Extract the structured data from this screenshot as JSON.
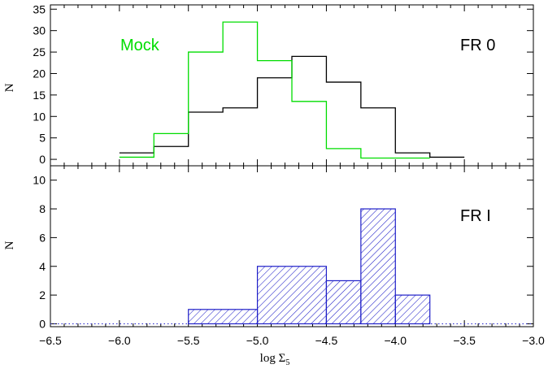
{
  "chart_data": [
    {
      "type": "histogram",
      "panel": "top",
      "xlabel": "",
      "ylabel": "N",
      "xlim": [
        -6.5,
        -3.0
      ],
      "ylim": [
        -1.5,
        36
      ],
      "yticks": [
        0,
        5,
        10,
        15,
        20,
        25,
        30,
        35
      ],
      "annotations": [
        "Mock",
        "FR 0"
      ],
      "series": [
        {
          "name": "FR 0",
          "color": "#000000",
          "style": "step",
          "bins": [
            [
              -6.0,
              -5.75
            ],
            [
              -5.75,
              -5.5
            ],
            [
              -5.5,
              -5.25
            ],
            [
              -5.25,
              -5.0
            ],
            [
              -5.0,
              -4.75
            ],
            [
              -4.75,
              -4.5
            ],
            [
              -4.5,
              -4.25
            ],
            [
              -4.25,
              -4.0
            ],
            [
              -4.0,
              -3.75
            ],
            [
              -3.75,
              -3.5
            ]
          ],
          "values": [
            1.5,
            3,
            11,
            12,
            19,
            24,
            18,
            12,
            1.5,
            0.5
          ]
        },
        {
          "name": "Mock",
          "color": "#00dd00",
          "style": "step",
          "bins": [
            [
              -6.0,
              -5.75
            ],
            [
              -5.75,
              -5.5
            ],
            [
              -5.5,
              -5.25
            ],
            [
              -5.25,
              -5.0
            ],
            [
              -5.0,
              -4.75
            ],
            [
              -4.75,
              -4.5
            ],
            [
              -4.5,
              -4.25
            ],
            [
              -4.25,
              -4.0
            ],
            [
              -4.0,
              -3.75
            ]
          ],
          "values": [
            0.5,
            6,
            25,
            32,
            23,
            13.5,
            2.5,
            0.3,
            0.3
          ]
        }
      ]
    },
    {
      "type": "histogram",
      "panel": "bottom",
      "xlabel": "log Σ5",
      "ylabel": "N",
      "xlim": [
        -6.5,
        -3.0
      ],
      "ylim": [
        -0.2,
        11
      ],
      "yticks": [
        0,
        2,
        4,
        6,
        8,
        10
      ],
      "xticks": [
        -6.5,
        -6.0,
        -5.5,
        -5.0,
        -4.5,
        -4.0,
        -3.5,
        -3.0
      ],
      "xtick_labels": [
        "−6.5",
        "−6.0",
        "−5.5",
        "−5.0",
        "−4.5",
        "−4.0",
        "−3.5",
        "−3.0"
      ],
      "annotations": [
        "FR I"
      ],
      "series": [
        {
          "name": "FR I",
          "color": "#1f1fc8",
          "style": "hatched",
          "bins": [
            [
              -5.5,
              -5.0
            ],
            [
              -5.0,
              -4.5
            ],
            [
              -4.5,
              -4.25
            ],
            [
              -4.25,
              -4.0
            ],
            [
              -4.0,
              -3.75
            ]
          ],
          "values": [
            1,
            4,
            3,
            8,
            2
          ]
        }
      ]
    }
  ],
  "labels": {
    "top_ylabel": "N",
    "bottom_ylabel": "N",
    "xlabel_main": "log Σ",
    "xlabel_sub": "5",
    "mock": "Mock",
    "fr0": "FR 0",
    "fr1": "FR I"
  },
  "colors": {
    "fr0": "#000000",
    "mock": "#00dd00",
    "fr1": "#1f1fc8"
  }
}
